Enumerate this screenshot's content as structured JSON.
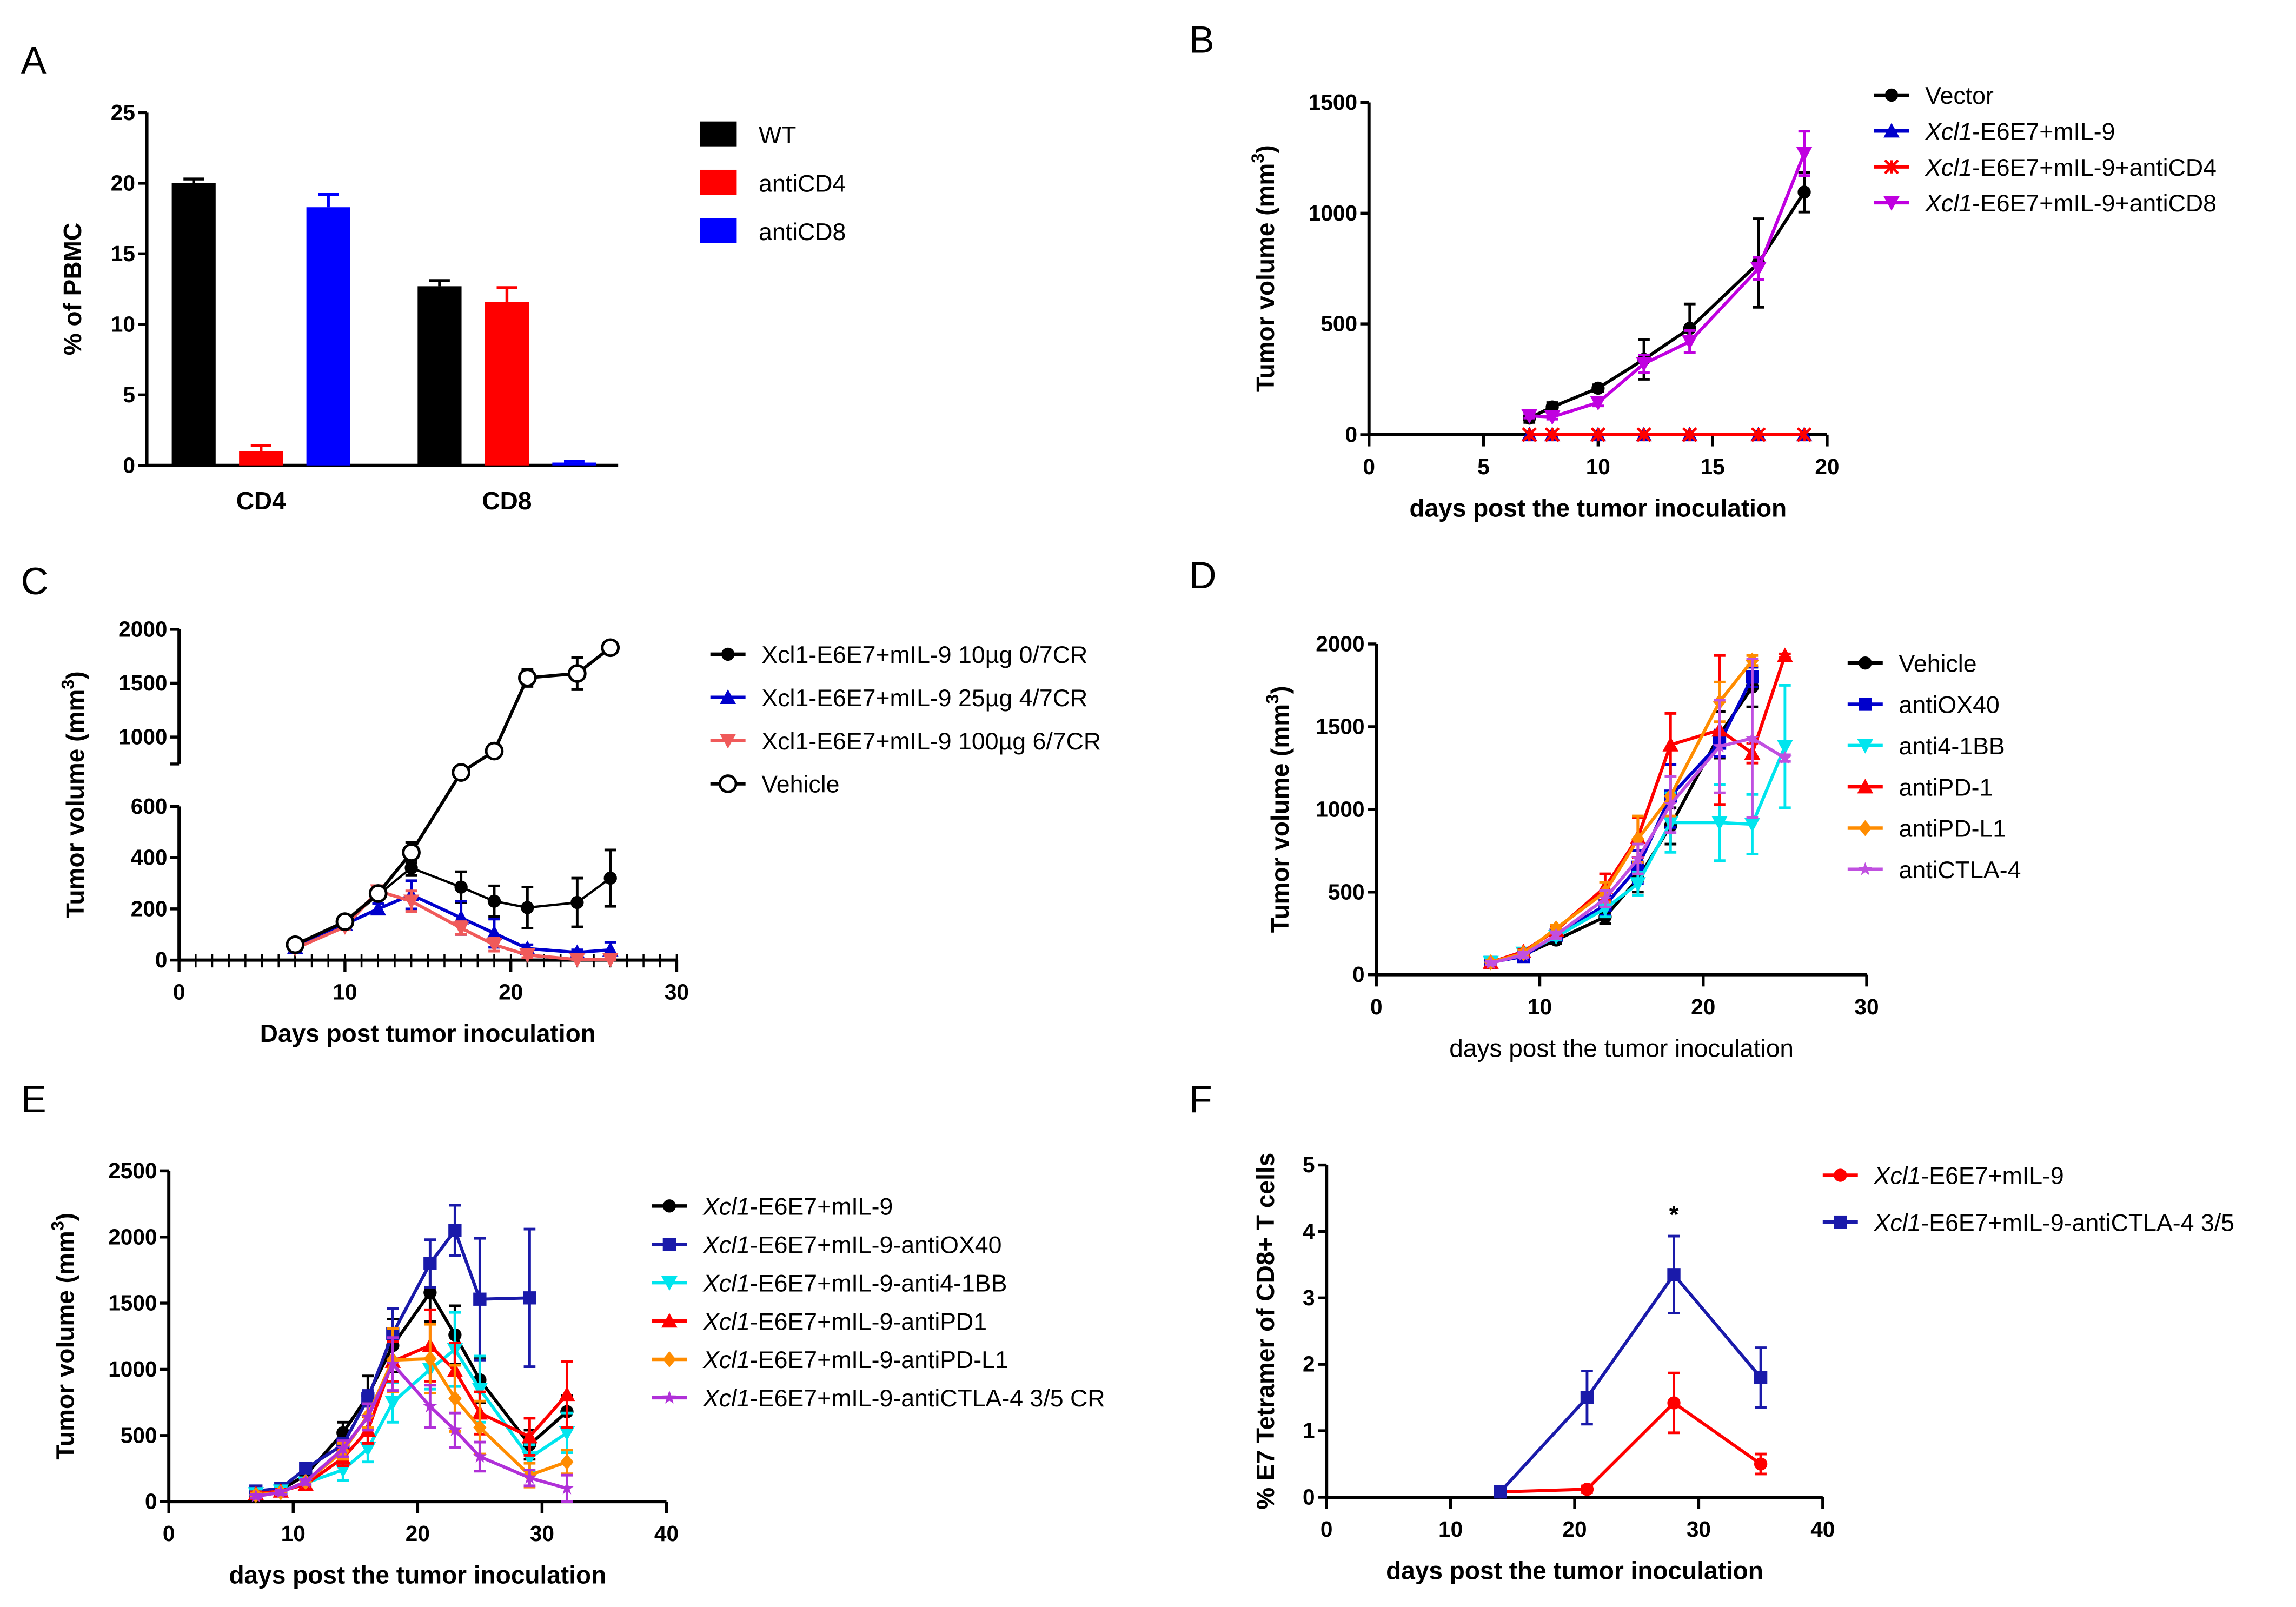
{
  "chart_data": [
    {
      "panel": "A",
      "type": "bar",
      "categories": [
        "CD4",
        "CD8"
      ],
      "ylabel": "% of PBMC",
      "ylim": [
        0,
        25
      ],
      "yticks": [
        0,
        5,
        10,
        15,
        20,
        25
      ],
      "legend_position": "right",
      "grid": false,
      "series": [
        {
          "name": "WT",
          "color": "#000000",
          "values": [
            20.0,
            12.7
          ],
          "errors": [
            0.3,
            0.4
          ]
        },
        {
          "name": "antiCD4",
          "color": "#ff0000",
          "values": [
            1.0,
            11.6
          ],
          "errors": [
            0.4,
            1.0
          ]
        },
        {
          "name": "antiCD8",
          "color": "#0000ff",
          "values": [
            18.3,
            0.2
          ],
          "errors": [
            0.9,
            0.1
          ]
        }
      ]
    },
    {
      "panel": "B",
      "type": "line",
      "xlabel": "days post the tumor inoculation",
      "ylabel_main": "Tumor volume (mm",
      "ylabel_sup": "3",
      "ylabel_end": ")",
      "xlim": [
        0,
        20
      ],
      "xticks": [
        0,
        5,
        10,
        15,
        20
      ],
      "ylim": [
        0,
        1500
      ],
      "yticks": [
        0,
        500,
        1000,
        1500
      ],
      "legend_position": "top-right",
      "grid": false,
      "series": [
        {
          "name_italic": "",
          "name_rest": "Vector",
          "color": "#000000",
          "marker": "circle",
          "x": [
            7,
            8,
            10,
            12,
            14,
            17,
            19
          ],
          "y": [
            75,
            125,
            210,
            340,
            480,
            775,
            1095
          ],
          "err": [
            20,
            20,
            15,
            90,
            110,
            200,
            90
          ]
        },
        {
          "name_italic": "Xcl1",
          "name_rest": "-E6E7+mIL-9",
          "color": "#0000cc",
          "marker": "triangle-up",
          "x": [
            7,
            8,
            10,
            12,
            14,
            17,
            19
          ],
          "y": [
            0,
            0,
            0,
            0,
            0,
            0,
            0
          ],
          "err": [
            0,
            0,
            0,
            0,
            0,
            0,
            0
          ]
        },
        {
          "name_italic": "Xcl1",
          "name_rest": "-E6E7+mIL-9+antiCD4",
          "color": "#ff0000",
          "marker": "x",
          "x": [
            7,
            8,
            10,
            12,
            14,
            17,
            19
          ],
          "y": [
            0,
            0,
            0,
            0,
            0,
            0,
            0
          ],
          "err": [
            0,
            0,
            0,
            0,
            0,
            0,
            0
          ]
        },
        {
          "name_italic": "Xcl1",
          "name_rest": "-E6E7+mIL-9+antiCD8",
          "color": "#c000e0",
          "marker": "triangle-down",
          "x": [
            7,
            8,
            10,
            12,
            14,
            17,
            19
          ],
          "y": [
            85,
            80,
            145,
            320,
            420,
            750,
            1270
          ],
          "err": [
            10,
            10,
            15,
            40,
            50,
            50,
            100
          ]
        }
      ]
    },
    {
      "panel": "C",
      "type": "line",
      "xlabel": "Days post tumor inoculation",
      "ylabel_main": "Tumor volume (mm",
      "ylabel_sup": "3",
      "ylabel_end": ")",
      "xlim": [
        0,
        30
      ],
      "xticks": [
        0,
        10,
        20,
        30
      ],
      "ylim": [
        0,
        2000
      ],
      "axis_break": [
        600,
        750
      ],
      "yticks": [
        0,
        200,
        400,
        600,
        1000,
        1500,
        2000
      ],
      "legend_position": "right",
      "grid": false,
      "series": [
        {
          "name_italic": "",
          "name_rest": "Xcl1-E6E7+mIL-9 10µg 0/7CR",
          "color": "#000000",
          "marker": "circle",
          "thin": true,
          "x": [
            7,
            10,
            12,
            14,
            17,
            19,
            21,
            24,
            26
          ],
          "y": [
            60,
            145,
            255,
            360,
            285,
            230,
            205,
            225,
            320
          ],
          "err": [
            10,
            10,
            20,
            30,
            60,
            60,
            80,
            95,
            110
          ]
        },
        {
          "name_italic": "",
          "name_rest": "Xcl1-E6E7+mIL-9 25µg 4/7CR",
          "color": "#0000cc",
          "marker": "triangle-up",
          "x": [
            7,
            10,
            12,
            14,
            17,
            19,
            21,
            24,
            26
          ],
          "y": [
            50,
            140,
            200,
            255,
            165,
            105,
            45,
            30,
            40
          ],
          "err": [
            10,
            15,
            20,
            55,
            65,
            55,
            15,
            10,
            30
          ]
        },
        {
          "name_italic": "",
          "name_rest": "Xcl1-E6E7+mIL-9 100µg 6/7CR",
          "color": "#f05a5a",
          "marker": "triangle-down",
          "x": [
            7,
            10,
            12,
            14,
            17,
            19,
            21,
            24,
            26
          ],
          "y": [
            45,
            130,
            270,
            230,
            125,
            60,
            20,
            2,
            2
          ],
          "err": [
            10,
            10,
            20,
            40,
            25,
            25,
            10,
            5,
            5
          ]
        },
        {
          "name_italic": "",
          "name_rest": "Vehicle",
          "color": "#000000",
          "marker": "open-circle",
          "x": [
            7,
            10,
            12,
            14,
            17,
            19,
            21,
            24,
            26
          ],
          "y": [
            60,
            150,
            260,
            420,
            720,
            870,
            1550,
            1590,
            1830
          ],
          "err": [
            5,
            10,
            15,
            40,
            20,
            40,
            80,
            150,
            20
          ]
        }
      ]
    },
    {
      "panel": "D",
      "type": "line",
      "xlabel": "days post the tumor  inoculation",
      "xlabel_bold": false,
      "ylabel_main": "Tumor volume (mm",
      "ylabel_sup": "3",
      "ylabel_end": ")",
      "xlim": [
        0,
        30
      ],
      "xticks": [
        0,
        10,
        20,
        30
      ],
      "ylim": [
        0,
        2000
      ],
      "yticks": [
        0,
        500,
        1000,
        1500,
        2000
      ],
      "legend_position": "right",
      "grid": false,
      "series": [
        {
          "name_italic": "",
          "name_rest": "Vehicle",
          "color": "#000000",
          "marker": "circle",
          "x": [
            7,
            9,
            11,
            14,
            16,
            18,
            21,
            23
          ],
          "y": [
            75,
            120,
            210,
            350,
            580,
            900,
            1450,
            1740
          ],
          "err": [
            10,
            15,
            20,
            40,
            80,
            110,
            140,
            120
          ]
        },
        {
          "name_italic": "",
          "name_rest": "antiOX40",
          "color": "#0000cc",
          "marker": "square",
          "x": [
            7,
            9,
            11,
            14,
            16,
            18,
            21,
            23
          ],
          "y": [
            75,
            110,
            240,
            420,
            650,
            1080,
            1400,
            1800
          ],
          "err": [
            10,
            15,
            20,
            60,
            100,
            190,
            80,
            60
          ]
        },
        {
          "name_italic": "",
          "name_rest": "anti4-1BB",
          "color": "#00e5ee",
          "marker": "triangle-down",
          "x": [
            7,
            9,
            11,
            14,
            16,
            18,
            21,
            23,
            25
          ],
          "y": [
            75,
            130,
            230,
            400,
            550,
            920,
            920,
            910,
            1380
          ],
          "err": [
            10,
            15,
            20,
            50,
            70,
            180,
            230,
            180,
            370
          ]
        },
        {
          "name_italic": "",
          "name_rest": "antiPD-1",
          "color": "#ff0000",
          "marker": "triangle-up",
          "x": [
            7,
            9,
            11,
            14,
            16,
            18,
            21,
            23,
            25
          ],
          "y": [
            75,
            140,
            270,
            530,
            830,
            1390,
            1480,
            1340,
            1930
          ],
          "err": [
            10,
            15,
            20,
            80,
            120,
            190,
            450,
            60,
            10
          ]
        },
        {
          "name_italic": "",
          "name_rest": "antiPD-L1",
          "color": "#ff8c00",
          "marker": "diamond",
          "x": [
            7,
            9,
            11,
            14,
            16,
            18,
            21,
            23
          ],
          "y": [
            75,
            130,
            280,
            500,
            820,
            1080,
            1650,
            1900
          ],
          "err": [
            10,
            15,
            20,
            60,
            140,
            120,
            120,
            30
          ]
        },
        {
          "name_italic": "",
          "name_rest": "antiCTLA-4",
          "color": "#c050e0",
          "marker": "star",
          "x": [
            7,
            9,
            11,
            14,
            16,
            18,
            21,
            23,
            25
          ],
          "y": [
            70,
            120,
            240,
            460,
            700,
            1030,
            1380,
            1430,
            1310
          ],
          "err": [
            10,
            15,
            20,
            50,
            90,
            170,
            280,
            480,
            20
          ]
        }
      ]
    },
    {
      "panel": "E",
      "type": "line",
      "xlabel": "days post the tumor inoculation",
      "ylabel_main": "Tumor volume (mm",
      "ylabel_sup": "3",
      "ylabel_end": ")",
      "xlim": [
        0,
        40
      ],
      "xticks": [
        0,
        10,
        20,
        30,
        40
      ],
      "ylim": [
        0,
        2500
      ],
      "yticks": [
        0,
        500,
        1000,
        1500,
        2000,
        2500
      ],
      "legend_position": "right",
      "grid": false,
      "series": [
        {
          "name_italic": "Xcl1",
          "name_rest": "-E6E7+mIL-9",
          "color": "#000000",
          "marker": "circle",
          "x": [
            7,
            9,
            11,
            14,
            16,
            18,
            21,
            23,
            25,
            29,
            32
          ],
          "y": [
            70,
            90,
            200,
            520,
            800,
            1180,
            1580,
            1260,
            920,
            430,
            680
          ],
          "err": [
            20,
            20,
            20,
            80,
            150,
            200,
            220,
            220,
            170,
            110,
            120
          ]
        },
        {
          "name_italic": "Xcl1",
          "name_rest": "-E6E7+mIL-9-antiOX40",
          "color": "#1a1aaa",
          "marker": "square",
          "x": [
            7,
            9,
            11,
            14,
            16,
            18,
            21,
            23,
            25,
            29
          ],
          "y": [
            80,
            100,
            250,
            430,
            780,
            1270,
            1800,
            2050,
            1530,
            1540
          ],
          "err": [
            30,
            30,
            30,
            50,
            60,
            190,
            180,
            190,
            460,
            520
          ]
        },
        {
          "name_italic": "Xcl1",
          "name_rest": "-E6E7+mIL-9-anti4-1BB",
          "color": "#00e5ee",
          "marker": "triangle-down",
          "x": [
            7,
            9,
            11,
            14,
            16,
            18,
            21,
            23,
            25,
            29,
            32
          ],
          "y": [
            60,
            80,
            140,
            240,
            400,
            750,
            1000,
            1150,
            850,
            330,
            520
          ],
          "err": [
            15,
            15,
            20,
            80,
            100,
            150,
            150,
            280,
            250,
            100,
            150
          ]
        },
        {
          "name_italic": "Xcl1",
          "name_rest": "-E6E7+mIL-9-antiPD1",
          "color": "#ff0000",
          "marker": "triangle-up",
          "x": [
            7,
            9,
            11,
            14,
            16,
            18,
            21,
            23,
            25,
            29,
            32
          ],
          "y": [
            60,
            80,
            130,
            330,
            540,
            1060,
            1180,
            990,
            670,
            490,
            810
          ],
          "err": [
            15,
            15,
            20,
            60,
            100,
            150,
            270,
            210,
            160,
            140,
            250
          ]
        },
        {
          "name_italic": "Xcl1",
          "name_rest": "-E6E7+mIL-9-antiPD-L1",
          "color": "#ff8c00",
          "marker": "diamond",
          "x": [
            7,
            9,
            11,
            14,
            16,
            18,
            21,
            23,
            25,
            29,
            32
          ],
          "y": [
            50,
            70,
            150,
            380,
            650,
            1070,
            1080,
            780,
            560,
            200,
            300
          ],
          "err": [
            15,
            15,
            20,
            60,
            90,
            240,
            260,
            250,
            200,
            90,
            90
          ]
        },
        {
          "name_italic": "Xcl1",
          "name_rest": "-E6E7+mIL-9-antiCTLA-4 3/5 CR",
          "color": "#b030d8",
          "marker": "star",
          "x": [
            7,
            9,
            11,
            14,
            16,
            18,
            21,
            23,
            25,
            29,
            32
          ],
          "y": [
            40,
            70,
            150,
            400,
            640,
            1040,
            720,
            540,
            340,
            180,
            100
          ],
          "err": [
            15,
            15,
            20,
            60,
            100,
            200,
            160,
            130,
            110,
            60,
            100
          ]
        }
      ]
    },
    {
      "panel": "F",
      "type": "line",
      "xlabel": "days post the tumor inoculation",
      "ylabel_main": "% E7 Tetramer of CD8+ T cells",
      "ylabel_sup": "",
      "ylabel_end": "",
      "xlim": [
        0,
        40
      ],
      "xticks": [
        0,
        10,
        20,
        30,
        40
      ],
      "ylim": [
        0,
        5
      ],
      "yticks": [
        0,
        1,
        2,
        3,
        4,
        5
      ],
      "legend_position": "top-right",
      "grid": false,
      "annotations": [
        {
          "text": "*",
          "x": 28,
          "y": 4.3
        }
      ],
      "series": [
        {
          "name_italic": "Xcl1",
          "name_rest": "-E6E7+mIL-9",
          "color": "#ff0000",
          "marker": "circle",
          "x": [
            14,
            21,
            28,
            35
          ],
          "y": [
            0.08,
            0.12,
            1.42,
            0.5
          ],
          "err": [
            0.02,
            0.05,
            0.45,
            0.15
          ]
        },
        {
          "name_italic": "Xcl1",
          "name_rest": "-E6E7+mIL-9-antiCTLA-4 3/5",
          "color": "#1a1aaa",
          "marker": "square",
          "x": [
            14,
            21,
            28,
            35
          ],
          "y": [
            0.08,
            1.5,
            3.35,
            1.8
          ],
          "err": [
            0.02,
            0.4,
            0.58,
            0.45
          ]
        }
      ]
    }
  ]
}
